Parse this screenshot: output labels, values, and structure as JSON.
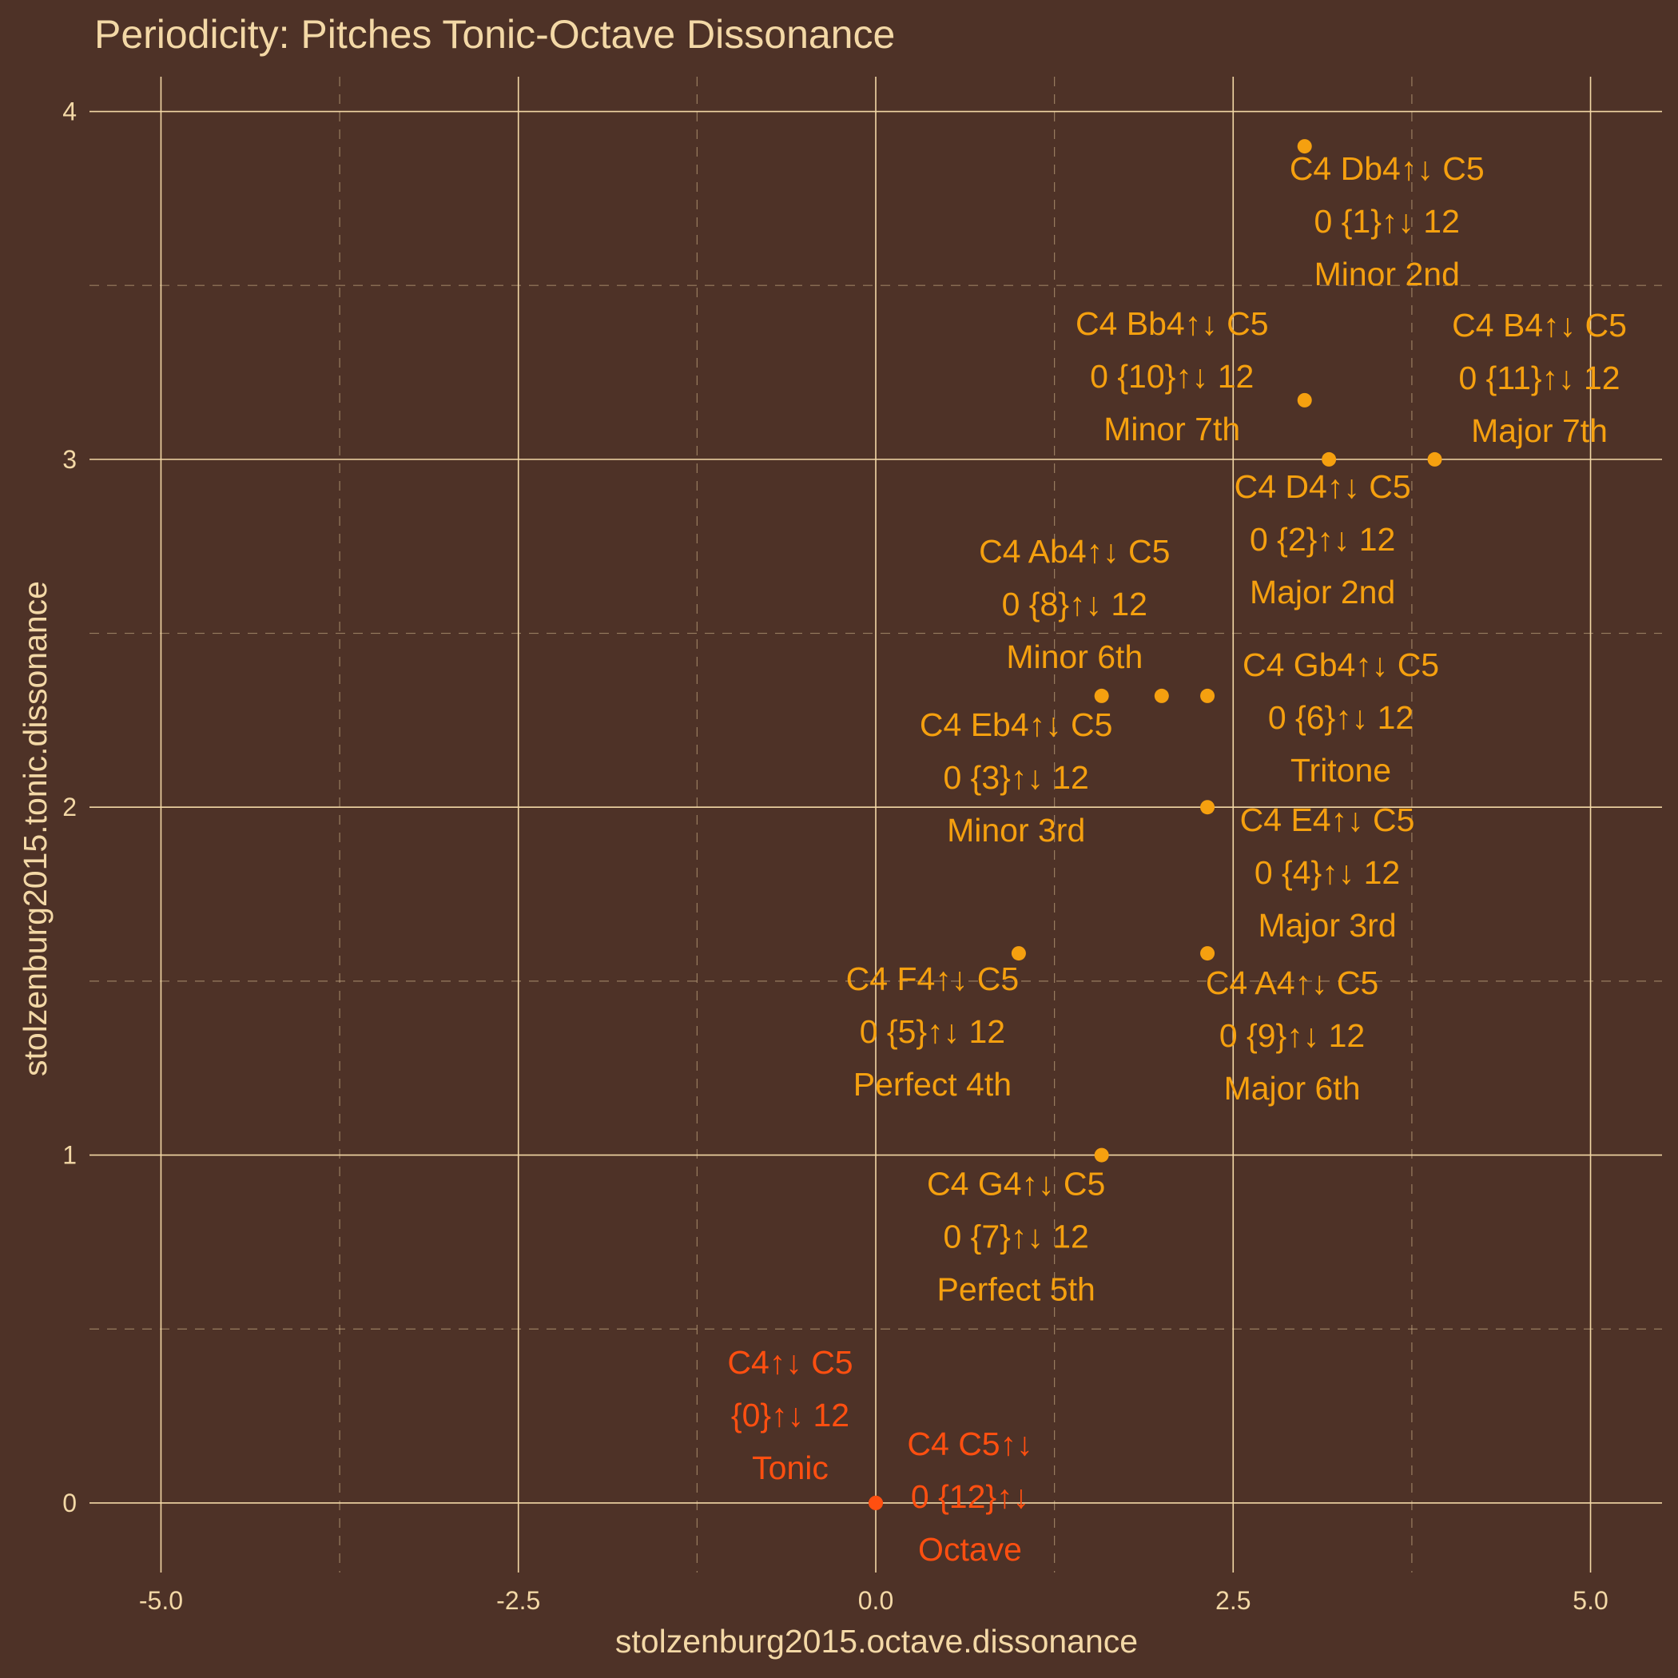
{
  "chart_data": {
    "type": "scatter",
    "title": "Periodicity: Pitches Tonic-Octave Dissonance",
    "xlabel": "stolzenburg2015.octave.dissonance",
    "ylabel": "stolzenburg2015.tonic.dissonance",
    "xlim": [
      -5.5,
      5.5
    ],
    "ylim": [
      -0.2,
      4.1
    ],
    "x_ticks": [
      -5.0,
      -2.5,
      0.0,
      2.5,
      5.0
    ],
    "x_tick_labels": [
      "-5.0",
      "-2.5",
      "0.0",
      "2.5",
      "5.0"
    ],
    "y_ticks": [
      0,
      1,
      2,
      3,
      4
    ],
    "y_tick_labels": [
      "0",
      "1",
      "2",
      "3",
      "4"
    ],
    "grid": true,
    "colors": {
      "background": "#4e3227",
      "grid": "#f3d8a6",
      "text": "#f3d8a6",
      "point": "#f5a00f",
      "highlight": "#ff4f10"
    },
    "points": [
      {
        "x": 0.0,
        "y": 0.0,
        "group": "highlight",
        "lines": [
          "C4↑↓ C5",
          "{0}↑↓ 12",
          "Tonic"
        ]
      },
      {
        "x": 3.0,
        "y": 3.9,
        "group": "point",
        "lines": [
          "C4 Db4↑↓ C5",
          "0 {1}↑↓ 12",
          "Minor 2nd"
        ]
      },
      {
        "x": 3.17,
        "y": 3.0,
        "group": "point",
        "lines": [
          "C4 D4↑↓ C5",
          "0 {2}↑↓ 12",
          "Major 2nd"
        ]
      },
      {
        "x": 1.58,
        "y": 2.32,
        "group": "point",
        "lines": [
          "C4 Eb4↑↓ C5",
          "0 {3}↑↓ 12",
          "Minor 3rd"
        ]
      },
      {
        "x": 2.32,
        "y": 2.0,
        "group": "point",
        "lines": [
          "C4 E4↑↓ C5",
          "0 {4}↑↓ 12",
          "Major 3rd"
        ]
      },
      {
        "x": 1.0,
        "y": 1.58,
        "group": "point",
        "lines": [
          "C4 F4↑↓ C5",
          "0 {5}↑↓ 12",
          "Perfect 4th"
        ]
      },
      {
        "x": 2.32,
        "y": 2.32,
        "group": "point",
        "lines": [
          "C4 Gb4↑↓ C5",
          "0 {6}↑↓ 12",
          "Tritone"
        ]
      },
      {
        "x": 1.58,
        "y": 1.0,
        "group": "point",
        "lines": [
          "C4 G4↑↓ C5",
          "0 {7}↑↓ 12",
          "Perfect 5th"
        ]
      },
      {
        "x": 2.0,
        "y": 2.32,
        "group": "point",
        "lines": [
          "C4 Ab4↑↓ C5",
          "0 {8}↑↓ 12",
          "Minor 6th"
        ]
      },
      {
        "x": 2.32,
        "y": 1.58,
        "group": "point",
        "lines": [
          "C4 A4↑↓ C5",
          "0 {9}↑↓ 12",
          "Major 6th"
        ]
      },
      {
        "x": 3.0,
        "y": 3.17,
        "group": "point",
        "lines": [
          "C4 Bb4↑↓ C5",
          "0 {10}↑↓ 12",
          "Minor 7th"
        ]
      },
      {
        "x": 3.91,
        "y": 3.0,
        "group": "point",
        "lines": [
          "C4 B4↑↓ C5",
          "0 {11}↑↓ 12",
          "Major 7th"
        ]
      },
      {
        "x": 0.0,
        "y": 0.0,
        "group": "highlight",
        "lines": [
          "C4 C5↑↓",
          "0 {12}↑↓",
          "Octave"
        ]
      }
    ]
  }
}
